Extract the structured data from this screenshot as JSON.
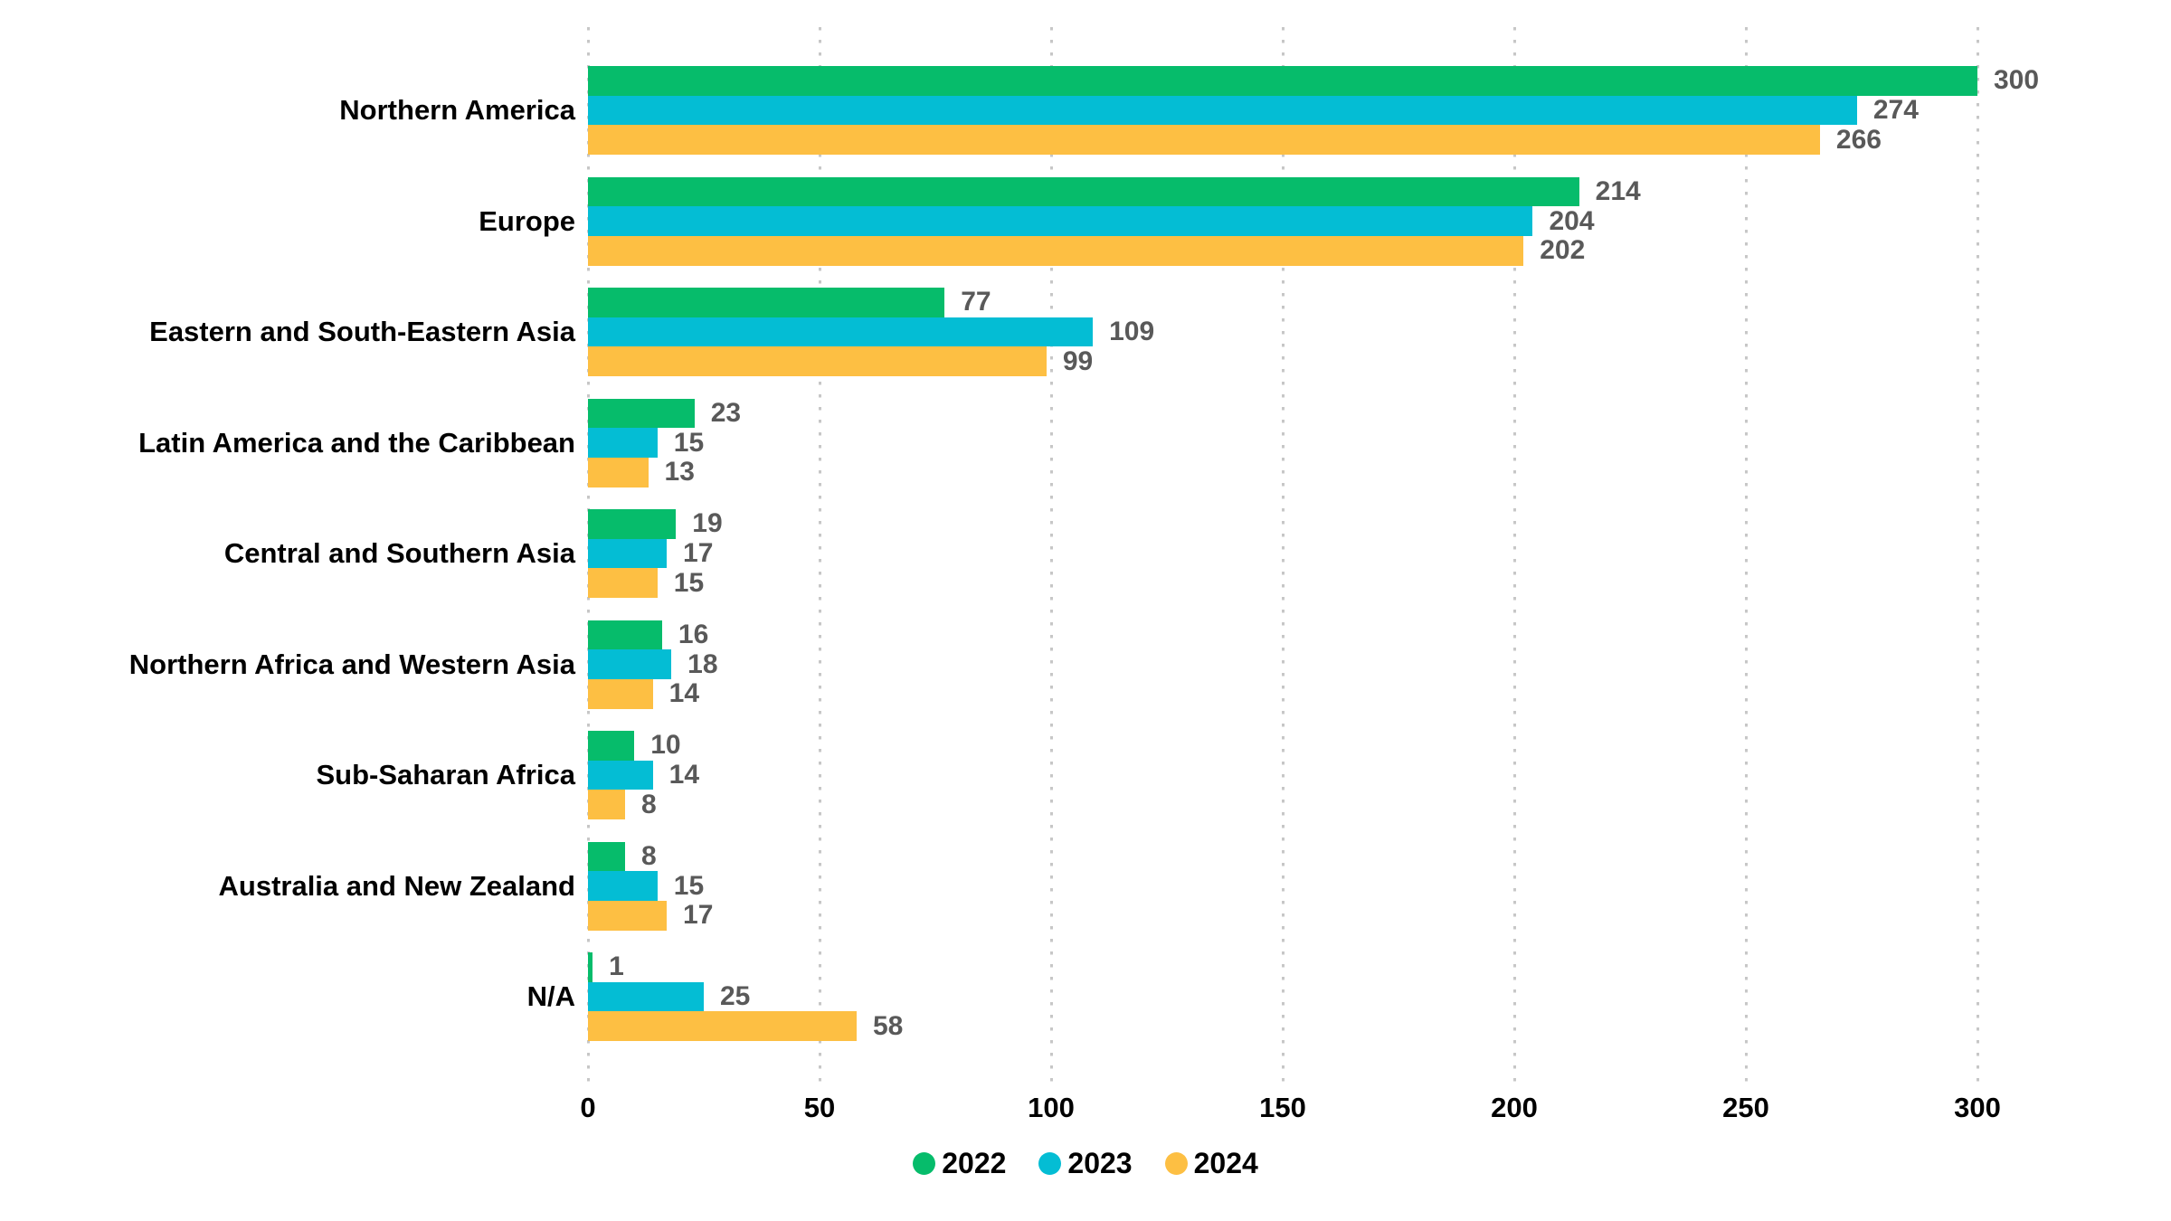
{
  "chart_data": {
    "type": "bar",
    "orientation": "horizontal",
    "title": "",
    "xlabel": "",
    "ylabel": "",
    "categories": [
      "Northern America",
      "Europe",
      "Eastern and South-Eastern Asia",
      "Latin America and the Caribbean",
      "Central and Southern Asia",
      "Northern Africa and Western Asia",
      "Sub-Saharan Africa",
      "Australia and New Zealand",
      "N/A"
    ],
    "series": [
      {
        "name": "2022",
        "color": "#06BC6B",
        "values": [
          300,
          214,
          77,
          23,
          19,
          16,
          10,
          8,
          1
        ]
      },
      {
        "name": "2023",
        "color": "#04BDD4",
        "values": [
          274,
          204,
          109,
          15,
          17,
          18,
          14,
          15,
          25
        ]
      },
      {
        "name": "2024",
        "color": "#FDBF43",
        "values": [
          266,
          202,
          99,
          13,
          15,
          14,
          8,
          17,
          58
        ]
      }
    ],
    "x_axis": {
      "min": 0,
      "max": 300,
      "ticks": [
        0,
        50,
        100,
        150,
        200,
        250,
        300
      ]
    },
    "grid": "dotted-vertical",
    "value_labels": true,
    "legend_position": "bottom-center"
  },
  "colors": {
    "background": "#ffffff",
    "gridline": "#c7c7c7",
    "category_label": "#000000",
    "value_label": "#595959",
    "tick_label": "#000000",
    "legend_label": "#000000"
  }
}
